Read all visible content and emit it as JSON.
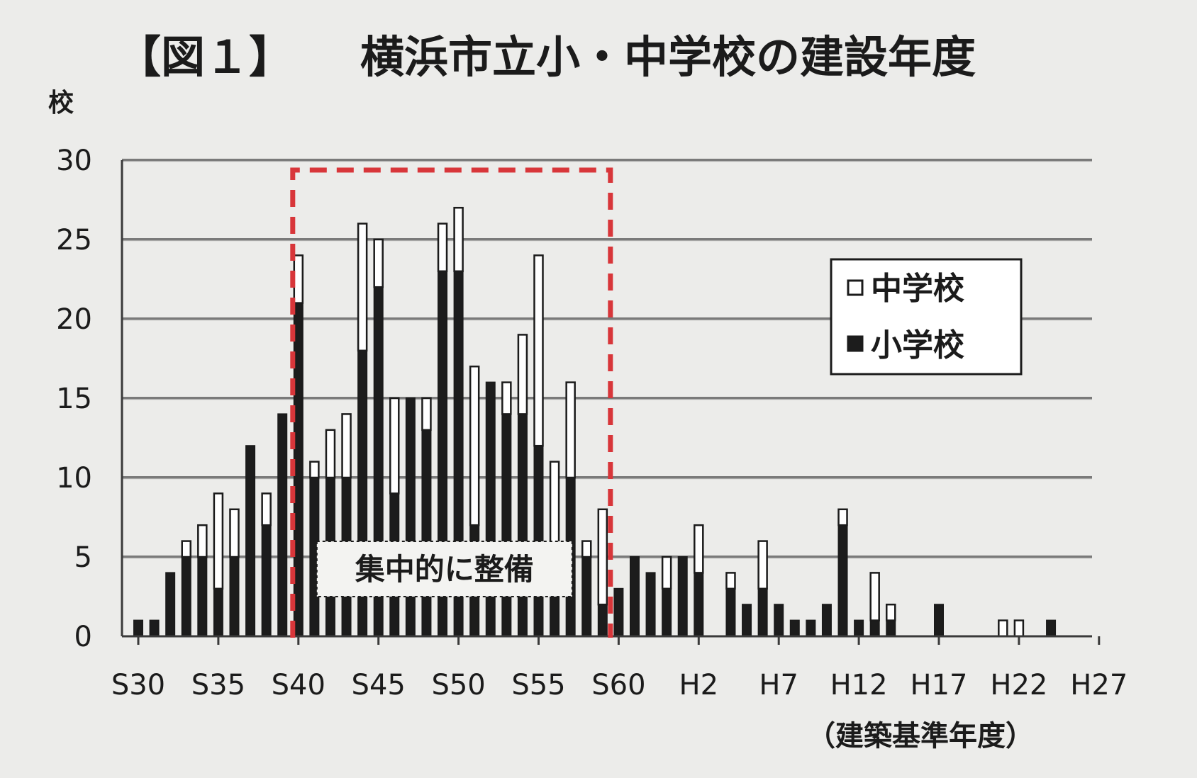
{
  "figure": {
    "label": "【図１】",
    "title": "横浜市立小・中学校の建設年度"
  },
  "chart_data": {
    "type": "bar",
    "stacked": true,
    "title": "横浜市立小・中学校の建設年度",
    "ylabel": "校",
    "xlabel": "（建築基準年度）",
    "ylim": [
      0,
      30
    ],
    "yticks": [
      0,
      5,
      10,
      15,
      20,
      25,
      30
    ],
    "grid": true,
    "legend_position": "top-right",
    "categories": [
      "S30",
      "S31",
      "S32",
      "S33",
      "S34",
      "S35",
      "S36",
      "S37",
      "S38",
      "S39",
      "S40",
      "S41",
      "S42",
      "S43",
      "S44",
      "S45",
      "S46",
      "S47",
      "S48",
      "S49",
      "S50",
      "S51",
      "S52",
      "S53",
      "S54",
      "S55",
      "S56",
      "S57",
      "S58",
      "S59",
      "S60",
      "S61",
      "S62",
      "S63",
      "H1",
      "H2",
      "H3",
      "H4",
      "H5",
      "H6",
      "H7",
      "H8",
      "H9",
      "H10",
      "H11",
      "H12",
      "H13",
      "H14",
      "H15",
      "H16",
      "H17",
      "H18",
      "H19",
      "H20",
      "H21",
      "H22",
      "H23",
      "H24",
      "H25",
      "H26",
      "H27"
    ],
    "tick_labels": [
      "S30",
      "S35",
      "S40",
      "S45",
      "S50",
      "S55",
      "S60",
      "H2",
      "H7",
      "H12",
      "H17",
      "H22",
      "H27"
    ],
    "series": [
      {
        "name": "小学校",
        "color": "#1c1c1c",
        "values": [
          1,
          1,
          4,
          5,
          5,
          3,
          5,
          12,
          7,
          14,
          21,
          10,
          10,
          10,
          18,
          22,
          9,
          15,
          13,
          23,
          23,
          7,
          16,
          14,
          14,
          12,
          5,
          10,
          5,
          2,
          3,
          5,
          4,
          3,
          5,
          4,
          0,
          3,
          2,
          3,
          2,
          1,
          1,
          2,
          7,
          1,
          1,
          1,
          0,
          0,
          2,
          0,
          0,
          0,
          0,
          0,
          0,
          1,
          0,
          0,
          0
        ]
      },
      {
        "name": "中学校",
        "color": "#ffffff",
        "values": [
          0,
          0,
          0,
          1,
          2,
          6,
          3,
          0,
          2,
          0,
          3,
          1,
          3,
          4,
          8,
          3,
          6,
          0,
          2,
          3,
          4,
          10,
          0,
          2,
          5,
          12,
          6,
          6,
          1,
          6,
          0,
          0,
          0,
          2,
          0,
          3,
          0,
          1,
          0,
          3,
          0,
          0,
          0,
          0,
          1,
          0,
          3,
          1,
          0,
          0,
          0,
          0,
          0,
          0,
          1,
          1,
          0,
          0,
          0,
          0,
          0
        ]
      }
    ],
    "legend": [
      {
        "label": "中学校",
        "swatch": "#ffffff"
      },
      {
        "label": "小学校",
        "swatch": "#1c1c1c"
      }
    ],
    "highlight": {
      "label": "集中的に整備",
      "from": "S40",
      "to": "S59",
      "color": "#d8363a"
    }
  }
}
